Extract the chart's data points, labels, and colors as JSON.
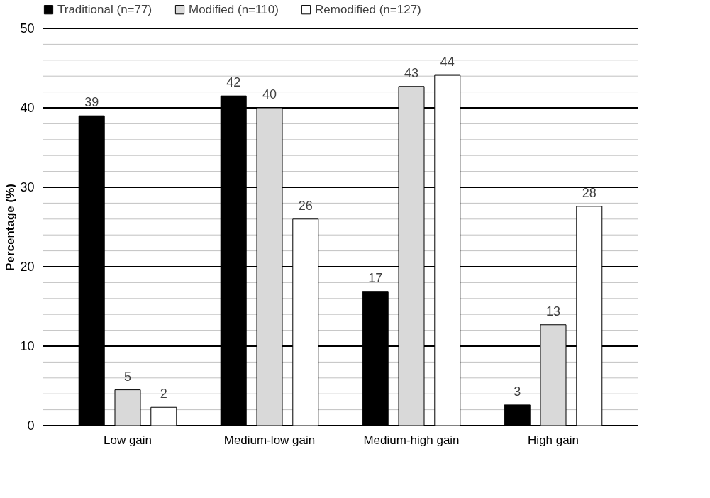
{
  "chart_data": {
    "type": "bar",
    "ylabel": "Percentage (%)",
    "categories": [
      "Low gain",
      "Medium-low gain",
      "Medium-high gain",
      "High gain"
    ],
    "series": [
      {
        "name": "Traditional (n=77)",
        "color": "#000000",
        "values": [
          39,
          41.5,
          16.9,
          2.6
        ],
        "value_labels": [
          "39",
          "42",
          "17",
          "3"
        ]
      },
      {
        "name": "Modified (n=110)",
        "color": "#d9d9d9",
        "values": [
          4.5,
          40,
          42.7,
          12.7
        ],
        "value_labels": [
          "5",
          "40",
          "43",
          "13"
        ]
      },
      {
        "name": "Remodified (n=127)",
        "color": "#ffffff",
        "values": [
          2.3,
          26,
          44.1,
          27.6
        ],
        "value_labels": [
          "2",
          "26",
          "44",
          "28"
        ]
      }
    ],
    "ylim": [
      0,
      50
    ],
    "yticks": [
      0,
      {
        "value": 2,
        "label": null
      },
      {
        "value": 4,
        "label": null
      },
      {
        "value": 6,
        "label": null
      },
      {
        "value": 8,
        "label": null
      },
      10,
      {
        "value": 12,
        "label": null
      },
      {
        "value": 14,
        "label": null
      },
      {
        "value": 16,
        "label": null
      },
      {
        "value": 18,
        "label": null
      },
      20,
      {
        "value": 22,
        "label": null
      },
      {
        "value": 24,
        "label": null
      },
      {
        "value": 26,
        "label": null
      },
      {
        "value": 28,
        "label": null
      },
      30,
      {
        "value": 32,
        "label": null
      },
      {
        "value": 34,
        "label": null
      },
      {
        "value": 36,
        "label": null
      },
      {
        "value": 38,
        "label": null
      },
      40,
      {
        "value": 42,
        "label": null
      },
      {
        "value": 44,
        "label": null
      },
      {
        "value": 46,
        "label": null
      },
      {
        "value": 48,
        "label": null
      },
      50
    ],
    "grid": "y",
    "legend": "top"
  }
}
